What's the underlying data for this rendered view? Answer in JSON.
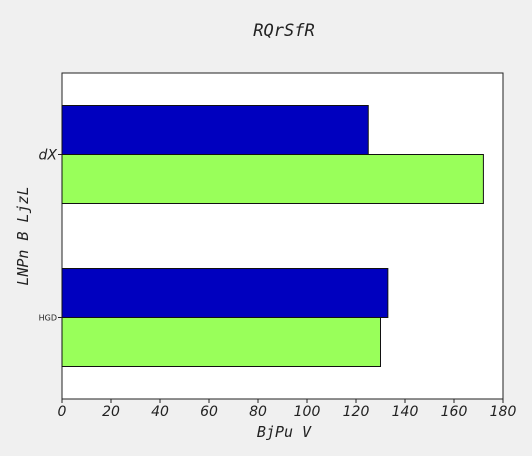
{
  "chart_data": {
    "type": "bar",
    "orientation": "horizontal",
    "title": "RQrSfR",
    "xlabel": "BjPu V",
    "ylabel": "LNPn B LjzL",
    "categories": [
      "HGD",
      "dX"
    ],
    "series": [
      {
        "color": "#99ff5a",
        "values": [
          130,
          172
        ]
      },
      {
        "color": "#0000bf",
        "values": [
          133,
          125
        ]
      }
    ],
    "xlim": [
      0,
      180
    ],
    "xticks": [
      0,
      20,
      40,
      60,
      80,
      100,
      120,
      140,
      160,
      180
    ],
    "grid": false,
    "background": "#ffffff",
    "figure_background": "#f0f0f0"
  }
}
